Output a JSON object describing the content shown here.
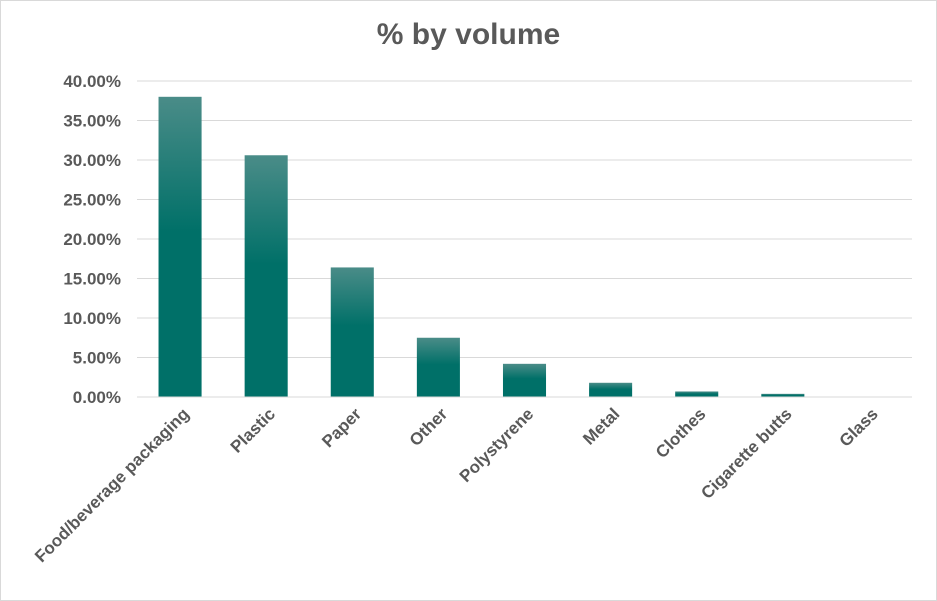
{
  "chart_data": {
    "type": "bar",
    "title": "% by volume",
    "xlabel": "",
    "ylabel": "",
    "categories": [
      "Food/beverage packaging",
      "Plastic",
      "Paper",
      "Other",
      "Polystyrene",
      "Metal",
      "Clothes",
      "Cigarette butts",
      "Glass"
    ],
    "values": [
      0.38,
      0.306,
      0.164,
      0.075,
      0.042,
      0.018,
      0.007,
      0.004,
      0.0005
    ],
    "ylim": [
      0,
      0.4
    ],
    "y_ticks": [
      "0.00%",
      "5.00%",
      "10.00%",
      "15.00%",
      "20.00%",
      "25.00%",
      "30.00%",
      "35.00%",
      "40.00%"
    ],
    "grid": true,
    "legend": "none",
    "colors": {
      "bar_top": "#4a8c88",
      "bar_bottom": "#007068",
      "grid": "#d9d9d9",
      "text": "#595959"
    }
  }
}
